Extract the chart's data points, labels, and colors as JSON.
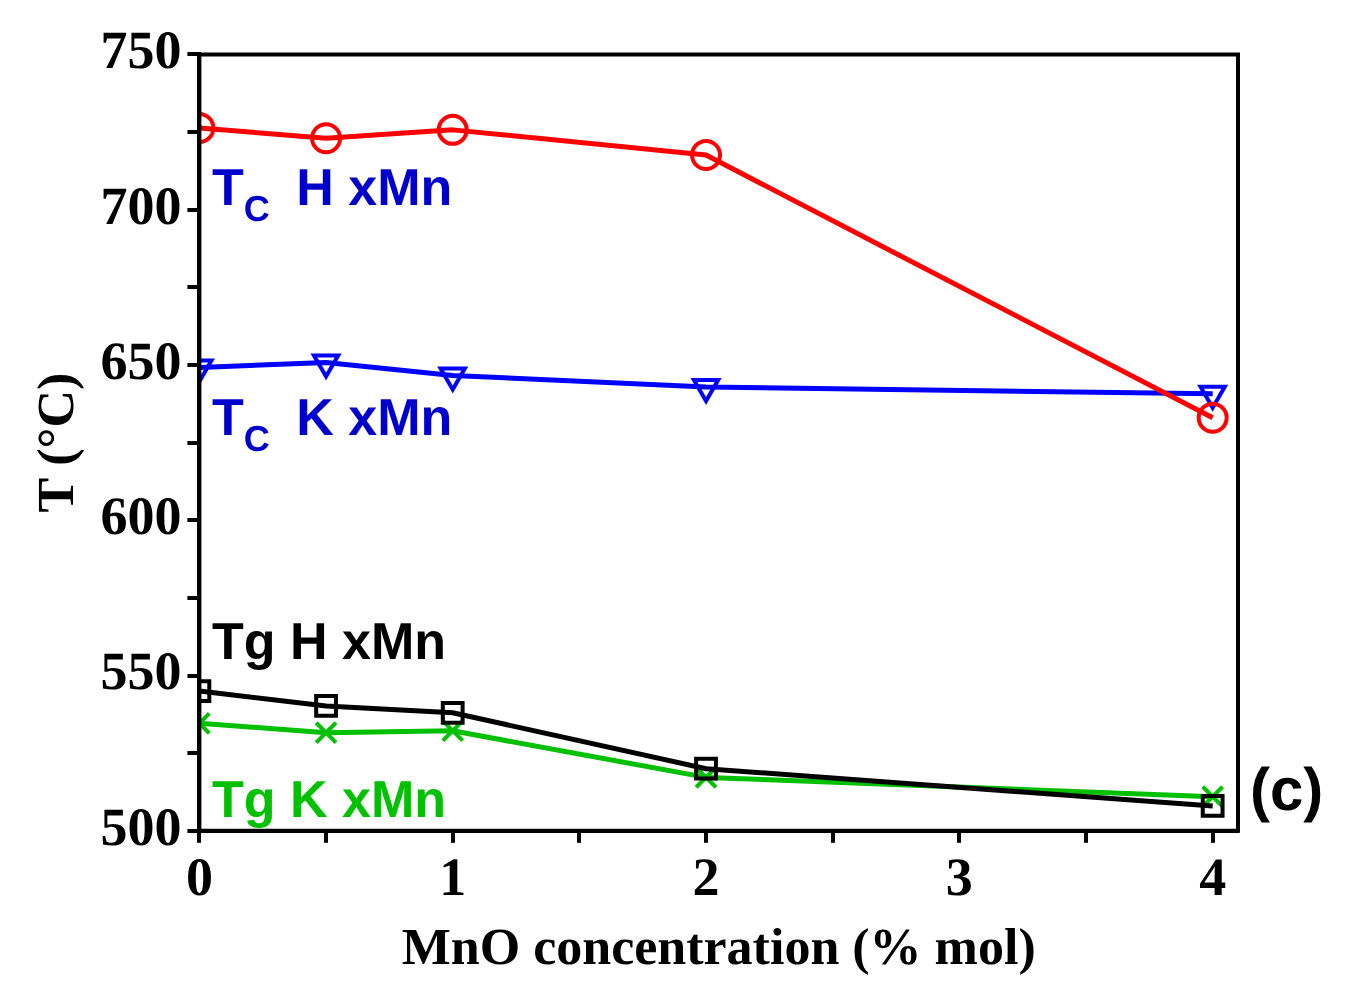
{
  "chart_data": {
    "type": "line",
    "xlabel": "MnO concentration (% mol)",
    "ylabel": "T (°C)",
    "x": [
      0,
      0.5,
      1,
      2,
      4
    ],
    "xlim": [
      0,
      4.1
    ],
    "xticks": [
      0,
      {
        "value": 0.5,
        "label": null
      },
      1,
      {
        "value": 1.5,
        "label": null
      },
      2,
      {
        "value": 2.5,
        "label": null
      },
      3,
      {
        "value": 3.5,
        "label": null
      },
      4
    ],
    "ylim": [
      500,
      750
    ],
    "yticks": [
      500,
      {
        "value": 525,
        "label": null
      },
      550,
      {
        "value": 575,
        "label": null
      },
      600,
      {
        "value": 625,
        "label": null
      },
      650,
      {
        "value": 675,
        "label": null
      },
      700,
      {
        "value": 725,
        "label": null
      },
      750
    ],
    "grid": false,
    "legend": false,
    "line_style": "solid",
    "series": [
      {
        "color": "#ff0000",
        "marker": "circle",
        "values": [
          726.3,
          723,
          725.7,
          717.6,
          633
        ]
      },
      {
        "color": "#0000ff",
        "marker": "triangle",
        "values": [
          649.2,
          650.8,
          646.6,
          642.9,
          640.7
        ]
      },
      {
        "color": "#000000",
        "marker": "square",
        "values": [
          545,
          540.2,
          538,
          520,
          508
        ]
      },
      {
        "color": "#00c000",
        "marker": "cross",
        "values": [
          534.6,
          531.6,
          532.2,
          517.2,
          511
        ]
      }
    ],
    "annotations": [
      "T$_{C}$ H xMn",
      "T$_{C}$ K xMn",
      "Tg H xMn",
      "Tg K xMn",
      "(c)"
    ]
  }
}
